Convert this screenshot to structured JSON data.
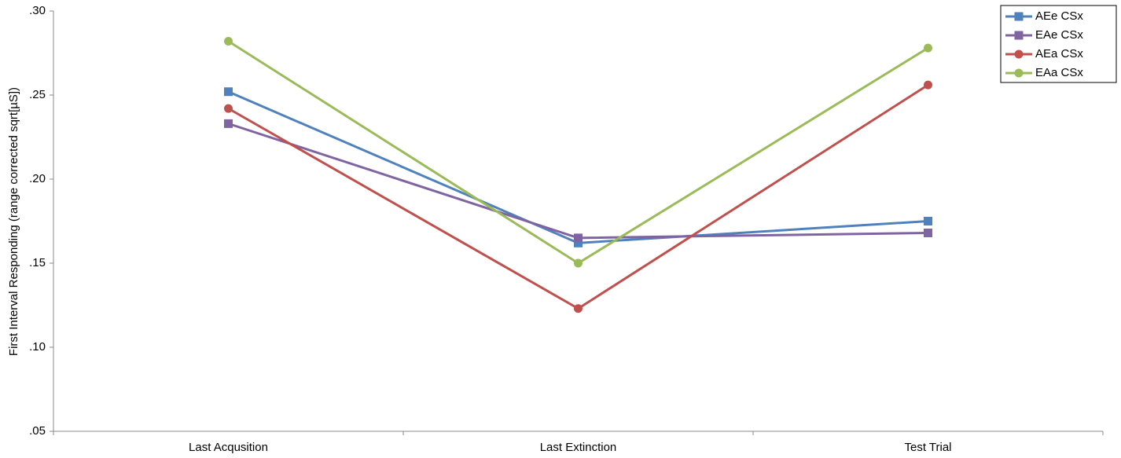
{
  "chart_data": {
    "type": "line",
    "y_label": "First  Interval Responding (range corrected sqrt[µS])",
    "categories": [
      "Last Acqusition",
      "Last Extinction",
      "Test Trial"
    ],
    "series": [
      {
        "name": "AEe CSx",
        "color": "#4f81bd",
        "marker": "square",
        "values": [
          0.252,
          0.162,
          0.175
        ]
      },
      {
        "name": "EAe CSx",
        "color": "#8064a2",
        "marker": "square",
        "values": [
          0.233,
          0.165,
          0.168
        ]
      },
      {
        "name": "AEa CSx",
        "color": "#c0504d",
        "marker": "circle",
        "values": [
          0.242,
          0.123,
          0.256
        ]
      },
      {
        "name": "EAa CSx",
        "color": "#9bbb59",
        "marker": "circle",
        "values": [
          0.282,
          0.15,
          0.278
        ]
      }
    ],
    "ylim": [
      0.05,
      0.3
    ],
    "yticks": [
      {
        "value": 0.05,
        "label": ".05"
      },
      {
        "value": 0.1,
        "label": ".10"
      },
      {
        "value": 0.15,
        "label": ".15"
      },
      {
        "value": 0.2,
        "label": ".20"
      },
      {
        "value": 0.25,
        "label": ".25"
      },
      {
        "value": 0.3,
        "label": ".30"
      }
    ],
    "grid": false,
    "legend": "top-right"
  }
}
